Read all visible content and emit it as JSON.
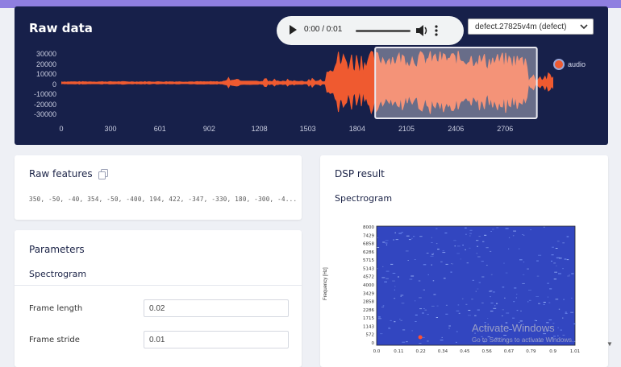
{
  "raw_data": {
    "title": "Raw data",
    "player": {
      "time": "0:00 / 0:01",
      "icons": [
        "play-icon",
        "volume-icon",
        "more-vertical-icon"
      ]
    },
    "sample_select": {
      "selected": "defect.27825v4m (defect)"
    },
    "y_ticks": [
      "30000",
      "20000",
      "10000",
      "0",
      "-10000",
      "-20000",
      "-30000"
    ],
    "x_ticks": [
      "0",
      "300",
      "601",
      "902",
      "1208",
      "1503",
      "1804",
      "2105",
      "2406",
      "2706"
    ],
    "legend": {
      "label": "audio",
      "color": "#ef5a30"
    },
    "chart_data": {
      "type": "line",
      "series": [
        {
          "name": "audio"
        }
      ],
      "xlim": [
        0,
        3000
      ],
      "ylim": [
        -35000,
        35000
      ],
      "window_highlight": [
        1914,
        2900
      ]
    }
  },
  "raw_features": {
    "title": "Raw features",
    "values_text": "350, -50, -40, 354, -50, -400, 194, 422, -347, -330, 180, -300, -4..."
  },
  "parameters": {
    "title": "Parameters",
    "section": "Spectrogram",
    "fields": [
      {
        "label": "Frame length",
        "value": "0.02"
      },
      {
        "label": "Frame stride",
        "value": "0.01"
      }
    ]
  },
  "dsp_result": {
    "title": "DSP result",
    "subtitle": "Spectrogram",
    "spectrogram": {
      "ylabel": "Frequency [Hz]",
      "y_ticks": [
        "8000",
        "7429",
        "6858",
        "6286",
        "5715",
        "5143",
        "4572",
        "4000",
        "3429",
        "2858",
        "2286",
        "1715",
        "1143",
        "572",
        "0"
      ],
      "x_ticks": [
        "0.0",
        "0.11",
        "0.22",
        "0.34",
        "0.45",
        "0.56",
        "0.67",
        "0.79",
        "0.9",
        "1.01"
      ],
      "background_color": "#3246c0"
    }
  },
  "watermark": {
    "line1": "Activate Windows",
    "line2": "Go to Settings to activate Windows."
  }
}
